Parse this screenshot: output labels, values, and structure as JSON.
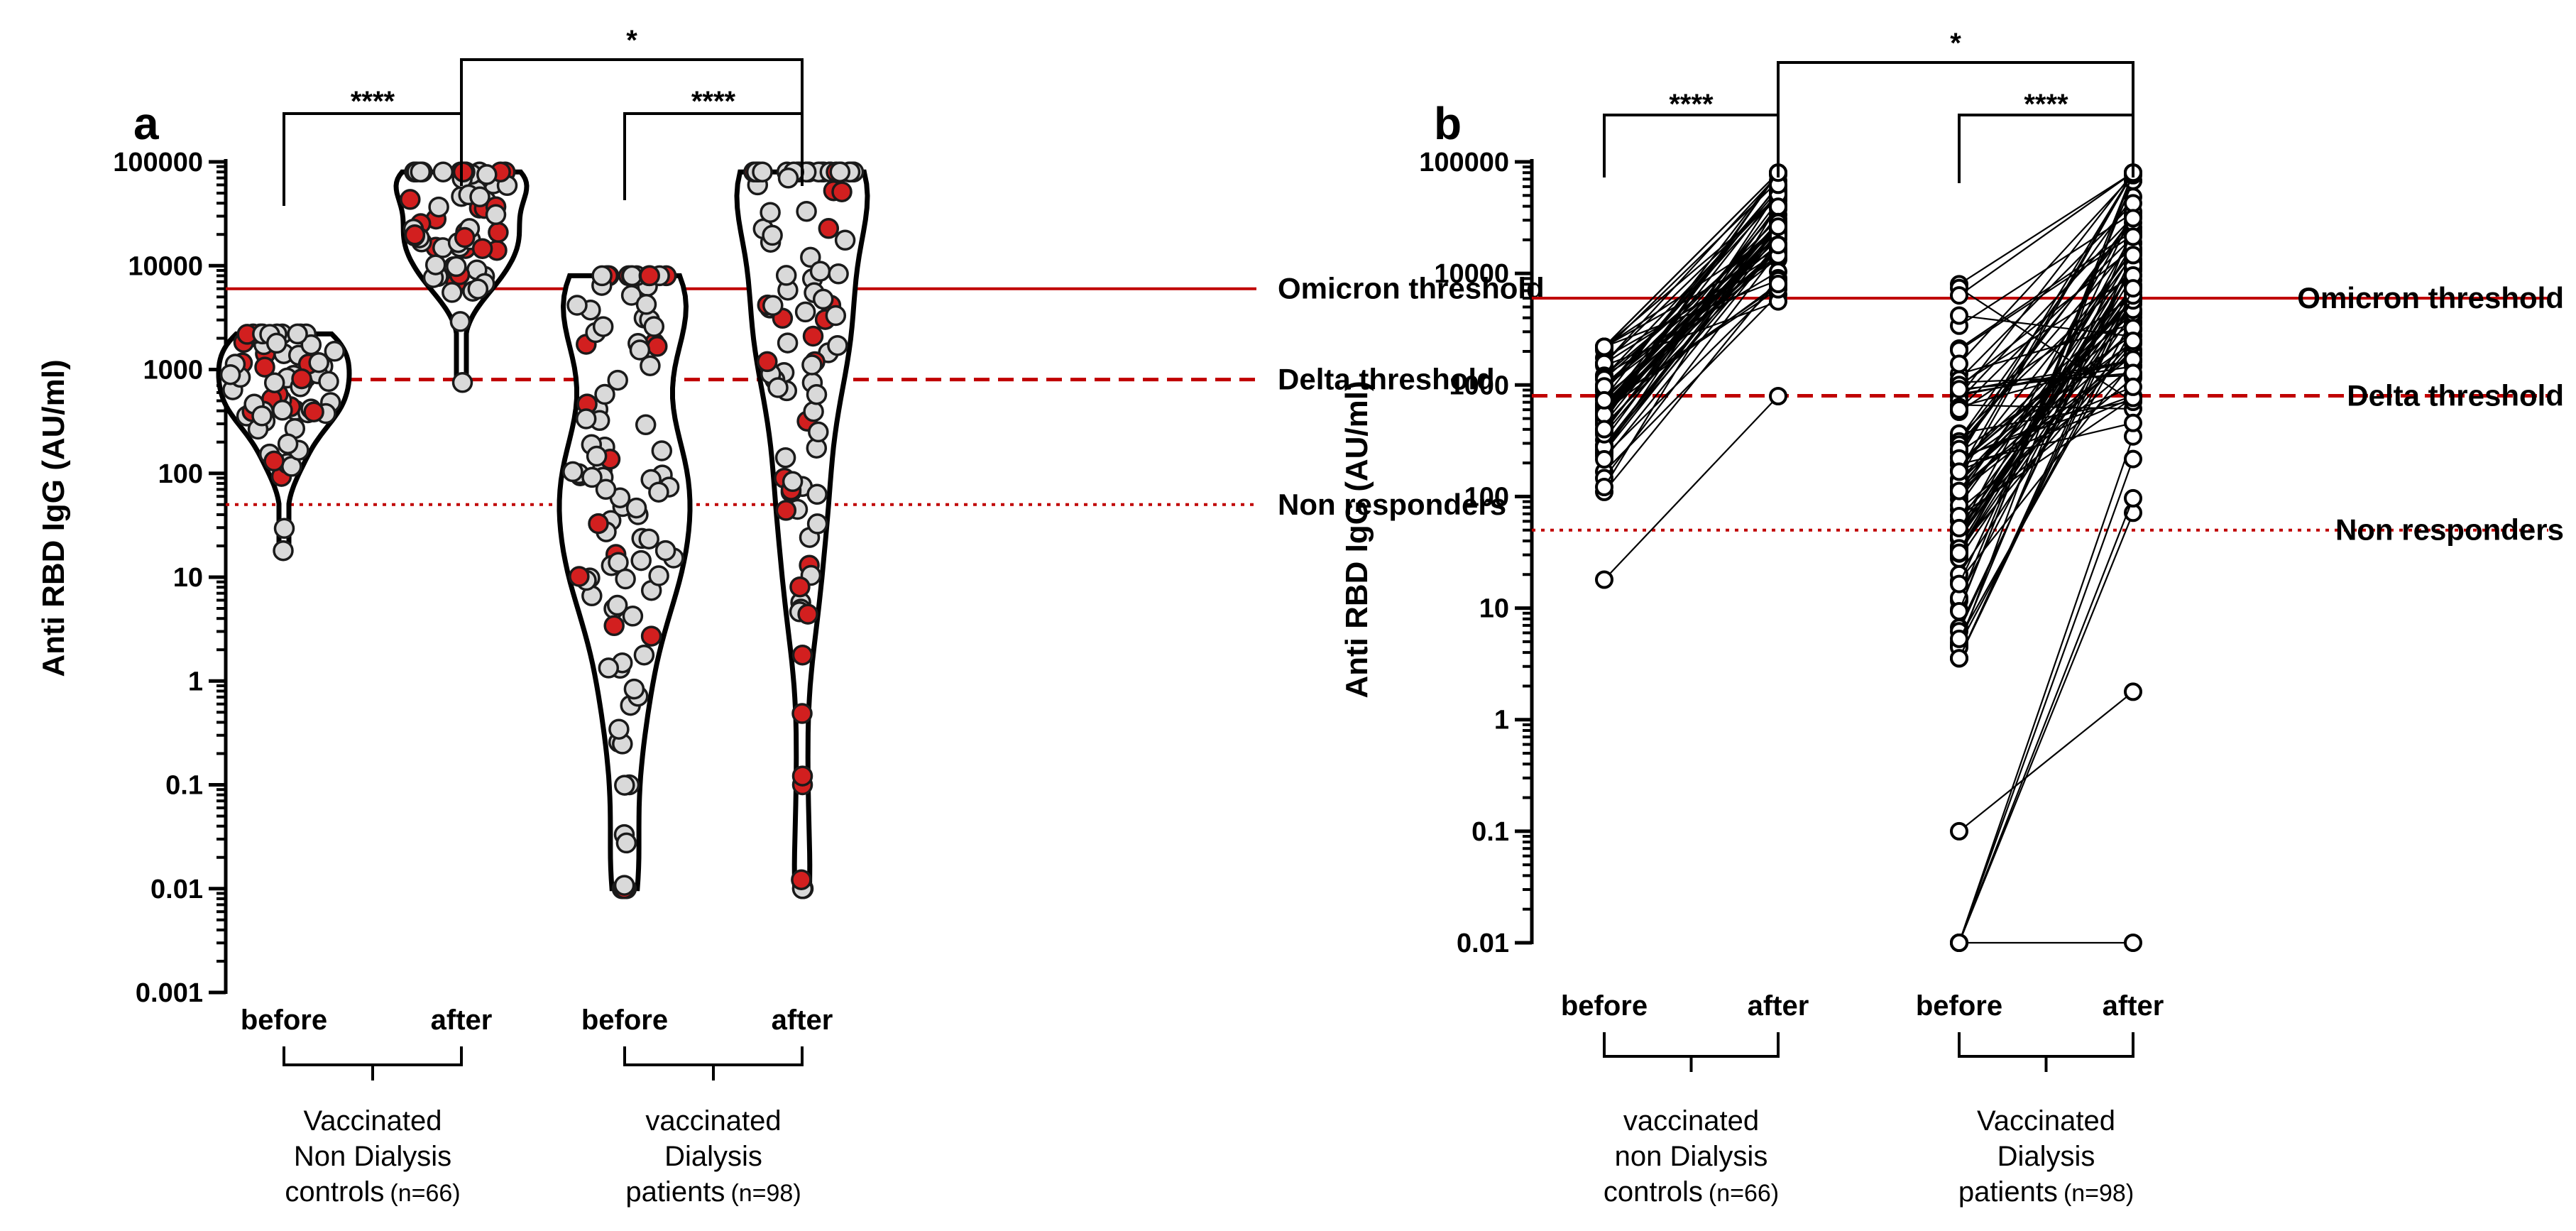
{
  "chart_data": [
    {
      "panel": "a",
      "type": "violin",
      "ylabel": "Anti RBD IgG  (AU/ml)",
      "yscale": "log",
      "ylim": [
        0.001,
        100000
      ],
      "yticks": [
        "0.001",
        "0.01",
        "0.1",
        "1",
        "10",
        "100",
        "1000",
        "10000",
        "100000"
      ],
      "categories": [
        "before",
        "after",
        "before",
        "after"
      ],
      "groups": [
        {
          "lines": [
            "Vaccinated",
            "Non Dialysis"
          ],
          "last": "controls",
          "n": "(n=66)"
        },
        {
          "lines": [
            "vaccinated",
            "Dialysis"
          ],
          "last": "patients",
          "n": "(n=98)"
        }
      ],
      "thresholds": [
        {
          "label": "Omicron threshold",
          "value": 6000,
          "style": "solid"
        },
        {
          "label": "Delta threshold",
          "value": 800,
          "style": "dashed"
        },
        {
          "label": "Non responders",
          "value": 50,
          "style": "dotted"
        }
      ],
      "significance": [
        {
          "from": 0,
          "to": 1,
          "label": "****"
        },
        {
          "from": 2,
          "to": 3,
          "label": "****"
        },
        {
          "from": 1,
          "to": 3,
          "label": "*"
        }
      ],
      "series": [
        {
          "name": "controls before",
          "range": [
            18,
            2200
          ],
          "median": 600
        },
        {
          "name": "controls after",
          "range": [
            750,
            80000
          ],
          "median": 25000
        },
        {
          "name": "dialysis before",
          "range": [
            0.01,
            8000
          ],
          "median": 150
        },
        {
          "name": "dialysis after",
          "range": [
            0.01,
            80000
          ],
          "median": 15000
        }
      ]
    },
    {
      "panel": "b",
      "type": "paired-line",
      "ylabel": "Anti RBD IgG  (AU/ml)",
      "yscale": "log",
      "ylim": [
        0.01,
        100000
      ],
      "yticks": [
        "0.01",
        "0.1",
        "1",
        "10",
        "100",
        "1000",
        "10000",
        "100000"
      ],
      "categories": [
        "before",
        "after",
        "before",
        "after"
      ],
      "groups": [
        {
          "lines": [
            "vaccinated",
            "non Dialysis"
          ],
          "last": "controls",
          "n": "(n=66)"
        },
        {
          "lines": [
            "Vaccinated",
            "Dialysis"
          ],
          "last": "patients",
          "n": "(n=98)"
        }
      ],
      "thresholds": [
        {
          "label": "Omicron threshold",
          "value": 6000,
          "style": "solid"
        },
        {
          "label": "Delta threshold",
          "value": 800,
          "style": "dashed"
        },
        {
          "label": "Non responders",
          "value": 50,
          "style": "dotted"
        }
      ],
      "significance": [
        {
          "from": 0,
          "to": 1,
          "label": "****"
        },
        {
          "from": 2,
          "to": 3,
          "label": "****"
        },
        {
          "from": 1,
          "to": 3,
          "label": "*"
        }
      ],
      "pairs": [
        {
          "name": "controls",
          "before": [
            18,
            2200
          ],
          "after": [
            750,
            80000
          ]
        },
        {
          "name": "dialysis",
          "before": [
            0.01,
            8000
          ],
          "after": [
            0.01,
            80000
          ]
        }
      ]
    }
  ],
  "colors": {
    "axis": "#000000",
    "threshold": "#c00000",
    "point_grey": "#d9d9d9",
    "point_red": "#d21f1f",
    "violin_fill": "#ffffff"
  }
}
